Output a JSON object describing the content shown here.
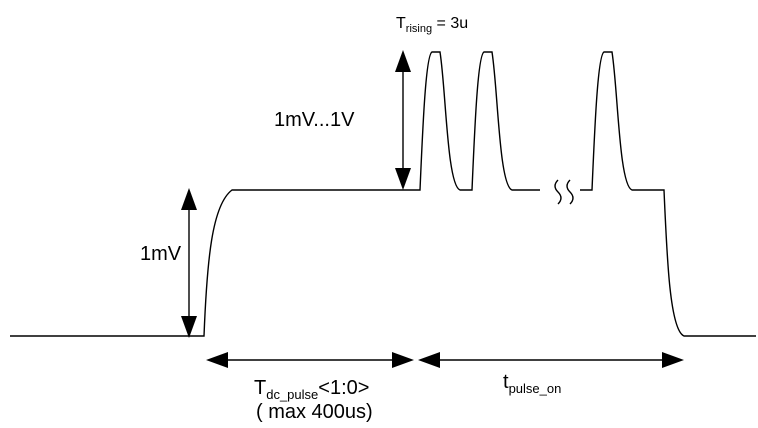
{
  "labels": {
    "baseline_step": "1mV",
    "pulse_amplitude": "1mV...1V",
    "rise_time": {
      "main": "T",
      "sub": "rising",
      "rest": " = 3u"
    },
    "dc_pulse": {
      "main": "T",
      "sub": "dc_pulse",
      "rest": "<1:0>"
    },
    "dc_pulse_note": "( max 400us)",
    "pulse_on": {
      "main": "t",
      "sub": "pulse_on"
    }
  }
}
